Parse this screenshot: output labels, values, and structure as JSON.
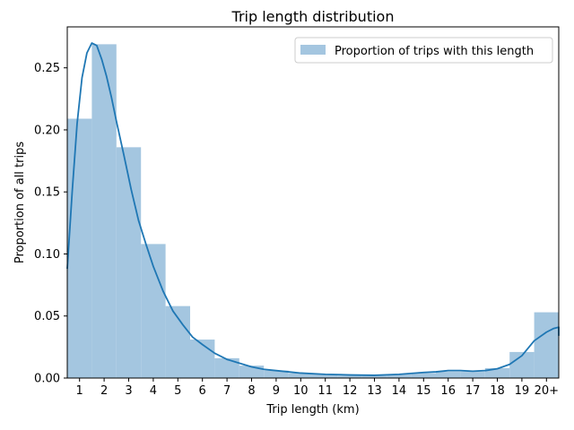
{
  "chart_data": {
    "type": "bar",
    "title": "Trip length distribution",
    "xlabel": "Trip length (km)",
    "ylabel": "Proportion of all trips",
    "categories": [
      "1",
      "2",
      "3",
      "4",
      "5",
      "6",
      "7",
      "8",
      "9",
      "10",
      "11",
      "12",
      "13",
      "14",
      "15",
      "16",
      "17",
      "18",
      "19",
      "20+"
    ],
    "series": [
      {
        "name": "Proportion of trips with this length",
        "values": [
          0.209,
          0.269,
          0.186,
          0.108,
          0.058,
          0.031,
          0.016,
          0.01,
          0.006,
          0.004,
          0.003,
          0.002,
          0.002,
          0.003,
          0.004,
          0.005,
          0.005,
          0.008,
          0.021,
          0.053
        ],
        "color": "#a4c6e0"
      }
    ],
    "kde": {
      "color": "#1f77b4",
      "x": [
        0.5,
        0.7,
        0.9,
        1.1,
        1.3,
        1.5,
        1.7,
        1.9,
        2.1,
        2.3,
        2.5,
        2.8,
        3.1,
        3.4,
        3.7,
        4.0,
        4.4,
        4.8,
        5.2,
        5.6,
        6.0,
        6.5,
        7.0,
        7.5,
        8.0,
        8.5,
        9.0,
        9.5,
        10.0,
        11.0,
        12.0,
        13.0,
        14.0,
        15.0,
        15.5,
        16.0,
        16.5,
        17.0,
        17.5,
        18.0,
        18.5,
        19.0,
        19.5,
        20.0,
        20.3,
        20.5
      ],
      "y": [
        0.088,
        0.15,
        0.205,
        0.242,
        0.262,
        0.27,
        0.268,
        0.257,
        0.243,
        0.226,
        0.207,
        0.18,
        0.152,
        0.127,
        0.108,
        0.09,
        0.07,
        0.054,
        0.043,
        0.033,
        0.027,
        0.02,
        0.015,
        0.012,
        0.009,
        0.007,
        0.006,
        0.005,
        0.004,
        0.003,
        0.0025,
        0.0022,
        0.003,
        0.0045,
        0.005,
        0.006,
        0.006,
        0.0055,
        0.006,
        0.0075,
        0.011,
        0.018,
        0.03,
        0.037,
        0.04,
        0.041
      ],
      "tail_y": 0.034
    },
    "ylim": [
      0,
      0.283
    ],
    "xlim": [
      0.5,
      20.5
    ],
    "yticks": [
      0.0,
      0.05,
      0.1,
      0.15,
      0.2,
      0.25
    ],
    "ytick_labels": [
      "0.00",
      "0.05",
      "0.10",
      "0.15",
      "0.20",
      "0.25"
    ],
    "legend_placement": "top-right",
    "grid": false
  }
}
